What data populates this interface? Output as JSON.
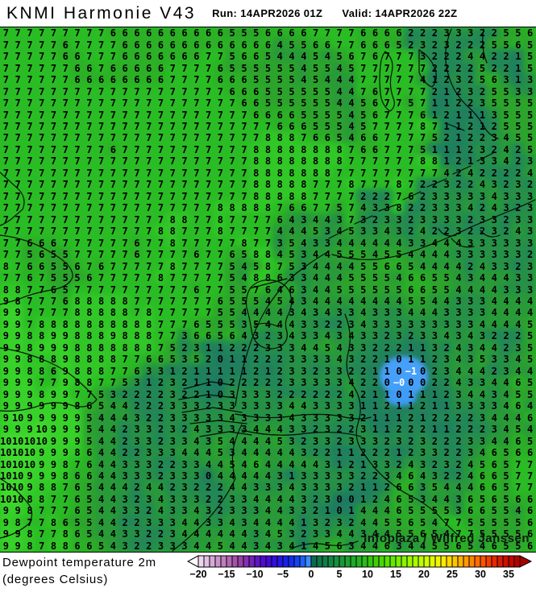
{
  "header": {
    "title": "KNMI Harmonie V43",
    "run_label": "Run: 14APR2026 01Z",
    "valid_label": "Valid: 14APR2026 22Z"
  },
  "map": {
    "watermark": "Infoplaza / Wilfred Janssen",
    "grid": {
      "cols": 45,
      "rows": [
        "7 7 7 7 7 7 7 7 7 6 6 6 6 6 6 6 6 6 6 5 5 5 6 6 6 6 7 7 7 7 6 6 6 6 2 2 2 3 3 3 2 2 5 5 6",
        "7 7 7 7 7 6 7 7 7 7 6 6 6 6 6 6 6 6 6 6 6 6 6 4 5 5 6 6 7 7 6 6 6 5 2 3 2 3 2 2 2 5 5 6 5",
        "7 7 7 7 7 6 6 7 7 7 6 6 6 6 6 6 6 7 7 5 6 6 5 4 4 4 5 4 5 6 7 6 7 7 7 3 2 2 2 4 4 2 2 1 5",
        "7 7 7 7 7 7 6 6 7 6 6 6 6 6 7 7 7 7 6 5 5 5 5 5 5 4 5 5 4 5 7 7 7 7 7 7 2 2 2 2 5 2 2 1 5",
        "7 7 7 7 7 7 6 6 6 6 6 6 6 6 7 7 7 7 6 6 6 5 5 5 5 4 5 4 4 4 7 7 7 7 7 4 1 2 3 2 5 6 3 1 3",
        "7 7 7 7 7 7 7 7 7 7 7 7 7 7 7 7 7 7 7 6 6 6 5 5 5 5 5 5 4 4 7 6 7 7 7 7 2 1 2 3 2 5 5 3 3",
        "7 7 7 7 7 7 7 7 7 7 7 7 7 7 7 7 7 7 7 7 6 6 5 5 5 5 5 5 4 4 5 6 7 7 5 7 1 1 2 2 3 5 5 5 5",
        "7 7 7 7 7 7 7 7 7 7 7 7 7 7 7 7 7 7 7 7 7 6 6 6 6 5 5 5 5 4 5 6 7 7 7 6 1 2 1 1 1 3 5 5 5",
        "7 7 7 7 7 7 7 7 7 7 7 7 7 7 7 7 7 7 7 7 7 7 7 6 6 6 5 5 5 4 5 7 7 7 7 8 7 1 1 2 1 2 5 5 5",
        "7 7 7 7 7 7 7 7 7 7 7 7 7 7 7 7 7 7 7 7 7 7 8 8 8 7 6 6 5 4 6 6 7 7 7 7 5 2 1 2 2 3 4 5 5",
        "7 7 7 7 7 7 7 7 7 6 7 7 7 7 7 7 7 7 7 7 7 8 8 8 8 8 8 8 8 7 6 6 7 7 7 5 1 1 1 2 3 2 4 2 5",
        "7 7 7 7 7 7 7 7 7 7 7 7 7 7 7 7 7 7 7 7 7 8 8 8 8 8 8 8 8 7 7 7 7 7 7 8 8 1 2 1 3 3 4 2 3",
        "7 7 7 7 7 7 7 7 7 7 7 7 7 7 7 7 7 7 7 7 7 8 8 8 8 8 8 8 7 7 7 7 7 7 7 7 7 4 2 4 2 2 2 2 4",
        "7 7 7 7 7 7 7 7 7 7 7 7 7 7 7 7 7 7 7 7 7 8 8 8 8 8 7 7 7 8 7 7 7 8 7 2 2 3 2 2 4 3 2 3 2",
        "7 7 7 7 7 7 7 7 7 7 7 7 7 7 7 7 7 7 7 7 7 8 8 8 8 8 7 7 7 7 2 2 2 7 6 2 3 3 3 3 3 4 3 3 3",
        "7 7 7 7 7 7 7 7 7 7 7 7 7 7 7 7 7 7 8 8 8 8 8 7 6 6 7 7 5 7 4 3 3 8 2 2 3 3 3 4 2 4 3 2 3",
        "7 7 7 7 7 7 7 7 7 7 7 7 7 7 8 8 7 7 8 7 7 7 7 6 4 3 4 4 3 7 3 2 3 3 2 3 3 3 3 2 3 3 2 3 3",
        "7 7 7 7 7 7 7 7 7 7 7 7 7 8 8 7 7 7 8 7 7 7 7 4 4 4 5 3 4 5 3 3 4 3 2 4 2 2 3 2 2 3 2 4 3",
        "7 7 6 6 6 7 7 7 7 7 7 6 7 7 8 7 7 7 7 7 8 7 7 3 5 4 3 3 4 4 4 4 4 4 3 3 4 4 4 3 3 3 3 3 3",
        "7 7 5 6 5 5 7 7 7 7 7 6 7 7 7 7 6 7 7 6 5 8 8 4 5 3 4 4 5 5 5 4 5 5 4 4 4 4 3 3 3 3 3 3 2",
        "8 7 6 6 5 5 6 7 6 7 7 7 7 7 8 7 7 7 7 5 4 5 8 7 5 3 4 4 4 4 5 5 6 6 5 4 4 4 4 2 4 3 3 2 3",
        "7 7 6 7 5 5 5 6 7 7 7 7 7 8 7 7 7 7 7 5 4 8 8 6 3 3 4 4 4 5 5 5 5 4 6 6 5 5 4 3 4 4 4 3 3",
        "8 8 7 7 6 5 7 7 7 7 7 7 7 7 7 7 6 7 7 5 5 7 6 4 6 3 4 4 5 5 5 5 5 5 6 6 5 5 4 4 4 4 3 3 3",
        "9 8 7 7 7 6 8 8 8 8 8 7 7 7 7 7 7 7 6 5 5 5 4 5 4 3 4 4 4 4 4 4 4 4 5 5 4 4 3 3 3 4 4 4 4",
        "9 9 7 7 7 7 8 8 8 8 8 7 8 7 7 7 7 7 5 5 4 4 4 4 3 4 3 4 3 3 4 3 3 3 4 4 4 3 3 3 3 4 4 4 4",
        "9 9 7 8 8 8 8 8 8 8 8 8 8 7 7 7 6 5 5 5 3 5 4 4 4 3 3 2 2 3 4 3 3 3 3 3 3 3 3 3 4 4 4 4 5",
        "9 9 8 8 9 9 8 8 8 9 8 8 8 7 7 3 6 6 5 6 4 3 2 3 4 3 3 4 3 4 3 3 2 3 2 3 3 4 3 4 3 2 2 2 5",
        "9 9 8 9 9 9 8 8 8 8 8 8 8 7 5 2 3 1 1 2 2 2 3 3 3 4 4 5 4 3 3 2 2 2 1 1 3 2 4 3 4 4 2 3 5",
        "9 9 8 8 8 9 8 8 8 8 7 7 6 6 5 3 5 2 0 1 1 2 2 2 3 3 3 3 4 3 2 2 1 0 1 1 2 3 4 3 5 3 3 4 5",
        "9 9 8 8 6 9 8 8 8 7 7 6 3 3 1 2 1 1 1 1 1 2 1 2 3 3 2 3 3 2 2 1 1 0 -1 0 2 3 4 4 4 2 3 4 4",
        "9 9 9 7 7 9 8 8 7 7 5 3 1 2 3 2 1 1 0 2 2 2 2 2 3 3 3 3 3 4 2 2 0 -0 0 0 2 2 4 3 3 4 4 6 5",
        "9 9 9 8 9 9 7 7 5 3 2 2 2 2 3 2 2 1 0 3 3 3 3 2 2 2 2 2 2 4 2 1 1 0 1 1 1 2 3 4 4 3 4 5 5",
        "9 9 9 9 9 9 8 6 5 4 4 2 2 2 3 3 3 2 3 3 3 3 3 3 4 4 3 3 3 3 1 1 2 1 1 2 1 1 3 3 3 3 4 6 4",
        "9 10 9 9 9 9 9 5 4 4 4 3 2 2 3 3 3 3 3 4 3 3 3 3 4 3 3 3 3 3 2 1 1 1 2 1 2 2 2 2 3 4 4 4 6",
        "9 9 9 10 9 9 9 5 4 4 2 3 3 2 3 2 4 3 3 3 3 4 4 4 3 3 2 3 2 2 3 1 1 2 2 2 1 1 2 2 2 3 4 5 4",
        "10 10 10 10 9 9 9 5 4 4 2 3 3 2 3 3 4 3 5 4 4 4 4 5 3 2 3 3 2 3 3 3 2 3 2 3 2 2 2 3 3 4 4 6 5",
        "10 10 10 9 9 9 8 6 4 4 2 2 3 3 3 4 4 4 5 3 4 4 4 4 4 3 2 2 1 1 2 2 2 1 2 3 3 2 2 3 4 6 5 6 6",
        "10 10 10 9 9 8 7 6 4 4 3 3 3 2 2 3 3 4 4 5 4 6 4 4 4 4 4 3 1 2 1 3 3 2 4 3 2 3 2 4 5 6 5 7 7",
        "10 10 9 9 9 8 6 6 4 4 3 3 3 2 3 3 3 0 4 4 4 4 4 3 1 3 3 3 3 3 2 2 3 4 6 4 3 2 2 4 6 6 5 7 7",
        "10 10 9 8 8 7 6 5 4 4 4 2 4 4 2 3 2 2 2 4 4 3 3 3 4 3 3 3 3 2 1 1 2 6 6 3 5 4 4 4 6 6 5 7 7",
        "10 10 8 8 7 7 6 5 4 4 3 2 3 4 3 3 3 2 2 3 3 4 4 4 4 3 2 3 0 0 1 2 4 6 5 3 4 4 3 6 5 6 5 6 6",
        "9 9 8 7 7 7 6 5 4 4 3 3 2 4 3 3 4 3 2 3 3 3 4 4 3 3 2 1 0 1 4 4 4 6 5 5 5 5 3 6 6 5 5 4 6",
        "9 8 7 7 8 6 5 5 4 4 2 2 3 3 3 4 4 3 3 4 3 4 4 4 4 1 3 2 3 2 4 4 5 5 6 5 4 7 7 5 5 5 5 5 6",
        "9 9 8 7 7 8 6 5 4 4 3 3 2 2 3 4 4 4 4 4 4 3 4 5 3 2 3 3 4 4 3 4 4 5 5 6 5 4 7 7 5 5 5 5 6",
        "9 9 8 7 8 8 6 6 5 4 3 2 2 3 3 3 4 4 5 4 4 3 4 3 4 1 4 5 6 3 4 4 6 3 4 4 5 5 6 5 4 6 5 5 6"
      ]
    },
    "white_cells": [
      [
        29,
        34
      ],
      [
        30,
        33
      ]
    ],
    "value_colors": {
      "-1": "#3f97f2",
      "-0": "#3f97f2",
      "0": "#1d7a62",
      "1": "#1f7f5e",
      "2": "#228756",
      "3": "#259046",
      "4": "#289a38",
      "5": "#2ca42c",
      "6": "#2bb026",
      "7": "#2abc24",
      "8": "#31c727",
      "9": "#38d12a",
      "10": "#41da2e",
      "default": "#2abb24"
    }
  },
  "legend": {
    "caption_line1": "Dewpoint temperature 2m",
    "caption_line2": "(degrees Celsius)",
    "ticks": [
      {
        "label": "−20",
        "value": -20
      },
      {
        "label": "−15",
        "value": -15
      },
      {
        "label": "−10",
        "value": -10
      },
      {
        "label": "−5",
        "value": -5
      },
      {
        "label": "0",
        "value": 0
      },
      {
        "label": "5",
        "value": 5
      },
      {
        "label": "10",
        "value": 10
      },
      {
        "label": "15",
        "value": 15
      },
      {
        "label": "20",
        "value": 20
      },
      {
        "label": "25",
        "value": 25
      },
      {
        "label": "30",
        "value": 30
      },
      {
        "label": "35",
        "value": 35
      }
    ],
    "bar_min": -20,
    "bar_colors": [
      "#eed6ee",
      "#e2c0e2",
      "#d6aad6",
      "#ca94ca",
      "#be7ebe",
      "#b268b2",
      "#a652a6",
      "#973fa8",
      "#8530b2",
      "#7322bc",
      "#6114c6",
      "#500bd0",
      "#4209d6",
      "#3410dc",
      "#2618e2",
      "#1822e8",
      "#1230ee",
      "#1544f4",
      "#2060fa",
      "#3a8cff",
      "#0b6b4b",
      "#0e744a",
      "#117d47",
      "#148643",
      "#178f3e",
      "#1a9838",
      "#1da131",
      "#20aa29",
      "#25b321",
      "#2cbc19",
      "#35c511",
      "#3fce0a",
      "#4bd703",
      "#58e000",
      "#66e800",
      "#76ef00",
      "#87f500",
      "#99fa00",
      "#abfd00",
      "#bdff00",
      "#d0ff00",
      "#e2fc00",
      "#f2f500",
      "#fdea00",
      "#ffd900",
      "#ffc500",
      "#ffb000",
      "#ff9a00",
      "#ff8400",
      "#ff6d00",
      "#fb5500",
      "#f13d00",
      "#e62a00",
      "#da1a00",
      "#cd0d00",
      "#c00400",
      "#b40000"
    ]
  }
}
